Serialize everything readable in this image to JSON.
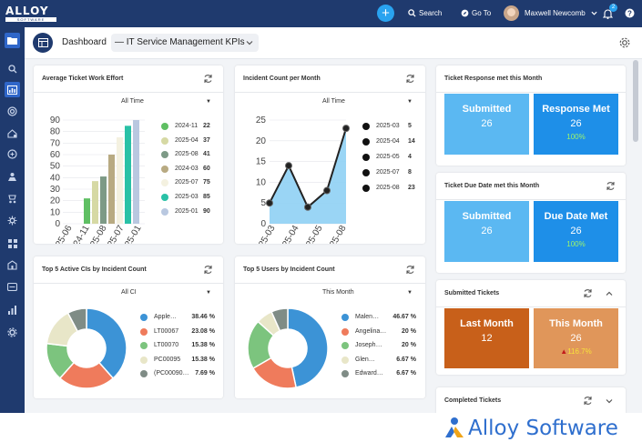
{
  "app": {
    "brand": "ALLOY",
    "brand_sub": "SOFTWARE"
  },
  "topbar": {
    "search_label": "Search",
    "goto_label": "Go To",
    "user_name": "Maxwell Newcomb",
    "notif_count": "2",
    "add_label": "+"
  },
  "sidebar": {
    "icons": [
      "folder-icon",
      "search-icon",
      "dashboard-icon",
      "support-icon",
      "tickets-icon",
      "incidents-icon",
      "requests-icon",
      "network-icon",
      "settings-icon",
      "widgets-icon",
      "building-icon",
      "forms-icon",
      "reports-icon",
      "gear-icon"
    ]
  },
  "header": {
    "dashboard_label": "Dashboard",
    "dashboard_name": "— IT Service Management KPIs"
  },
  "work_effort": {
    "title": "Average Ticket Work Effort",
    "filter": "All Time",
    "chart_data": {
      "type": "bar",
      "categories": [
        "2024-11",
        "2025-04",
        "2025-08",
        "2024-03",
        "2025-07",
        "2025-03",
        "2025-01"
      ],
      "values": [
        22,
        37,
        41,
        60,
        75,
        85,
        90
      ],
      "colors": [
        "#5fbf63",
        "#d6d9a4",
        "#7d9a86",
        "#b8aa82",
        "#f4f1e0",
        "#29c1a6",
        "#b9c8e0"
      ],
      "ylim": [
        0,
        90
      ],
      "yticks": [
        0,
        10,
        20,
        30,
        40,
        50,
        60,
        70,
        80,
        90
      ],
      "xticks": [
        "2025-06",
        "2024-11",
        "2025-08",
        "2025-07",
        "2025-01"
      ]
    }
  },
  "incident_count": {
    "title": "Incident Count per Month",
    "filter": "All Time",
    "chart_data": {
      "type": "area",
      "x": [
        "2025-03",
        "2025-04",
        "2025-05",
        "2025-07",
        "2025-08"
      ],
      "values": [
        5,
        14,
        4,
        8,
        23
      ],
      "ylim": [
        0,
        25
      ],
      "yticks": [
        0,
        5,
        10,
        15,
        20,
        25
      ],
      "xticks": [
        "2025-03",
        "2025-04",
        "2025-05",
        "2025-08"
      ],
      "color": "#8fd0f4"
    }
  },
  "response_met": {
    "title": "Ticket Response met this Month",
    "submitted_label": "Submitted",
    "submitted_value": "26",
    "met_label": "Response Met",
    "met_value": "26",
    "met_pct": "100%"
  },
  "due_date_met": {
    "title": "Ticket Due Date met this Month",
    "submitted_label": "Submitted",
    "submitted_value": "26",
    "met_label": "Due Date Met",
    "met_value": "26",
    "met_pct": "100%"
  },
  "top_cis": {
    "title": "Top 5 Active CIs by Incident Count",
    "filter": "All CI",
    "chart_data": {
      "type": "pie",
      "labels": [
        "Apple…",
        "LT00067",
        "LT00070",
        "PC00095",
        "(PC00090…"
      ],
      "values": [
        38.46,
        23.08,
        15.38,
        15.38,
        7.69
      ],
      "display": [
        "38.46 %",
        "23.08 %",
        "15.38 %",
        "15.38 %",
        "7.69 %"
      ],
      "colors": [
        "#3c93d6",
        "#ef7b5c",
        "#7cc47e",
        "#e8e6c8",
        "#7f8c86"
      ]
    }
  },
  "top_users": {
    "title": "Top 5 Users by Incident Count",
    "filter": "This Month",
    "chart_data": {
      "type": "pie",
      "labels": [
        "Malen…",
        "Angelina…",
        "Joseph…",
        "Glen…",
        "Edward…"
      ],
      "values": [
        46.67,
        20,
        20,
        6.67,
        6.67
      ],
      "display": [
        "46.67 %",
        "20 %",
        "20 %",
        "6.67 %",
        "6.67 %"
      ],
      "colors": [
        "#3c93d6",
        "#ef7b5c",
        "#7cc47e",
        "#e8e6c8",
        "#7f8c86"
      ]
    }
  },
  "submitted_tickets": {
    "title": "Submitted Tickets",
    "last_label": "Last Month",
    "last_value": "12",
    "this_label": "This Month",
    "this_value": "26",
    "change": "116.7%",
    "up_arrow": "▲"
  },
  "completed_tickets": {
    "title": "Completed Tickets"
  },
  "footer": {
    "logo_text": "Alloy Software"
  }
}
